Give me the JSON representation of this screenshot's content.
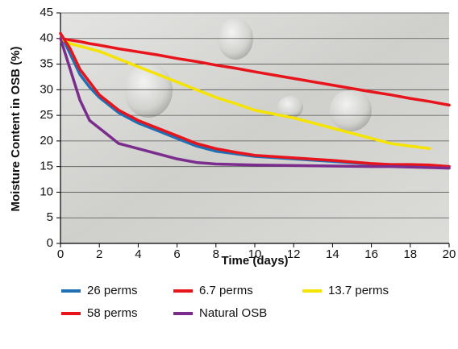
{
  "chart_data": {
    "type": "line",
    "x_label": "Time (days)",
    "y_label": "Moisture Content in OSB (%)",
    "x": [
      0,
      0.5,
      1,
      1.5,
      2,
      3,
      4,
      5,
      6,
      7,
      8,
      9,
      10,
      12,
      14,
      16,
      17,
      18,
      19,
      20
    ],
    "xlim": [
      0,
      20
    ],
    "xticks": [
      0,
      2,
      4,
      6,
      8,
      10,
      12,
      14,
      16,
      18,
      20
    ],
    "ylim": [
      0,
      45
    ],
    "yticks": [
      0,
      5,
      10,
      15,
      20,
      25,
      30,
      35,
      40,
      45
    ],
    "grid": true,
    "series": [
      {
        "name": "26 perms",
        "color": "#1f6fb5",
        "values": [
          41,
          37,
          33,
          30.5,
          28.5,
          25.5,
          23.5,
          22,
          20.5,
          19,
          18,
          17.5,
          17,
          16.5,
          16,
          15.5,
          15.3,
          15.2,
          15.1,
          15
        ]
      },
      {
        "name": "6.7 perms",
        "color": "#e8141b",
        "values": [
          40,
          39.7,
          39.4,
          39,
          38.7,
          38,
          37.4,
          36.8,
          36.1,
          35.5,
          34.8,
          34.2,
          33.5,
          32.2,
          30.9,
          29.6,
          29,
          28.3,
          27.7,
          27
        ]
      },
      {
        "name": "13.7 perms",
        "color": "#f5e400",
        "values": [
          40,
          39,
          38.5,
          38,
          37.5,
          36,
          34.5,
          33,
          31.5,
          30,
          28.5,
          27.3,
          26,
          24.5,
          22.5,
          20.5,
          19.5,
          19,
          18.5,
          null
        ]
      },
      {
        "name": "58 perms",
        "color": "#e8141b",
        "values": [
          41,
          38,
          34,
          31.5,
          29,
          26,
          24,
          22.5,
          21,
          19.5,
          18.5,
          17.8,
          17.2,
          16.7,
          16.2,
          15.6,
          15.4,
          15.4,
          15.3,
          15
        ]
      },
      {
        "name": "Natural OSB",
        "color": "#7b2d8e",
        "values": [
          40,
          34,
          28,
          24,
          22.5,
          19.5,
          18.5,
          17.5,
          16.5,
          15.8,
          15.5,
          15.4,
          15.3,
          15.2,
          15.1,
          15,
          15,
          14.9,
          14.8,
          14.7
        ]
      }
    ]
  }
}
